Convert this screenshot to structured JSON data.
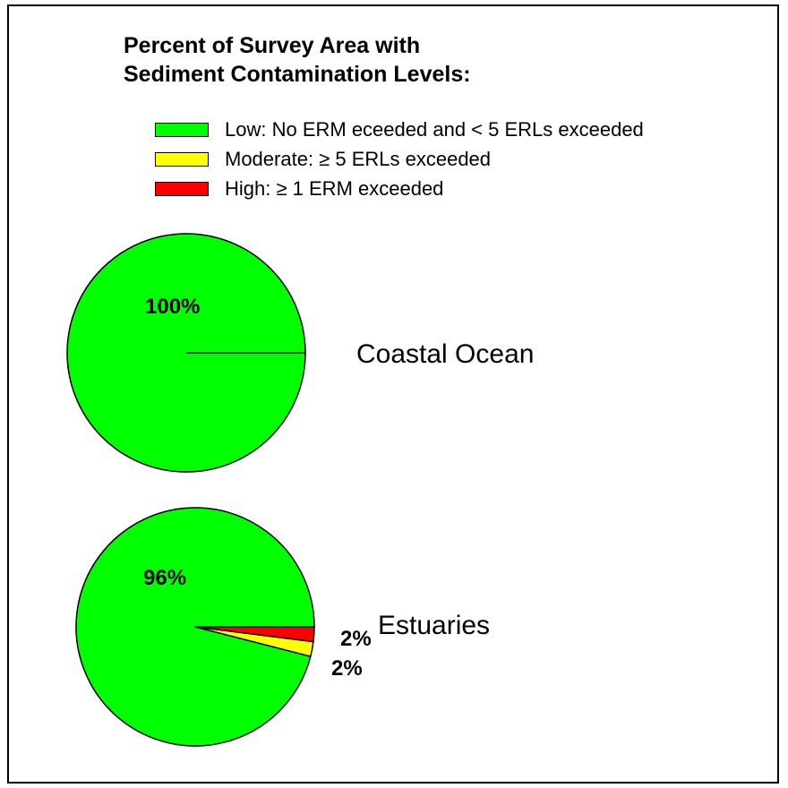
{
  "title_line1": "Percent of Survey Area with",
  "title_line2": "Sediment Contamination Levels:",
  "legend": [
    {
      "label": "Low: No ERM eceeded and < 5 ERLs exceeded",
      "color": "#00ff00"
    },
    {
      "label": "Moderate: ≥ 5 ERLs exceeded",
      "color": "#ffff00"
    },
    {
      "label": "High: ≥ 1 ERM exceeded",
      "color": "#ff0000"
    }
  ],
  "chart_data": [
    {
      "type": "pie",
      "name": "Coastal Ocean",
      "slices": [
        {
          "category": "Low",
          "value": 100,
          "label": "100%",
          "color": "#00ff00"
        },
        {
          "category": "Moderate",
          "value": 0,
          "label": "",
          "color": "#ffff00"
        },
        {
          "category": "High",
          "value": 0,
          "label": "",
          "color": "#ff0000"
        }
      ]
    },
    {
      "type": "pie",
      "name": "Estuaries",
      "slices": [
        {
          "category": "Low",
          "value": 96,
          "label": "96%",
          "color": "#00ff00"
        },
        {
          "category": "Moderate",
          "value": 2,
          "label": "2%",
          "color": "#ffff00"
        },
        {
          "category": "High",
          "value": 2,
          "label": "2%",
          "color": "#ff0000"
        }
      ]
    }
  ]
}
